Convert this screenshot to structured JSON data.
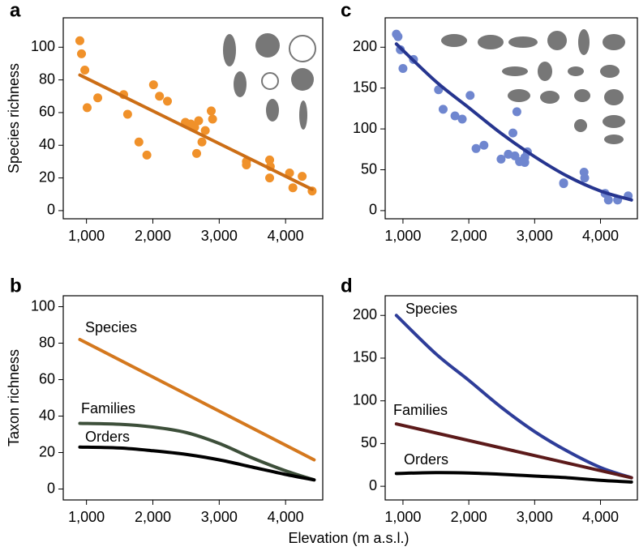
{
  "figure": {
    "xlabel": "Elevation (m a.s.l.)"
  },
  "chart_data": [
    {
      "type": "scatter",
      "label": "a",
      "ylabel": "Species richness",
      "xlim": [
        650,
        4560
      ],
      "ylim": [
        -5,
        118
      ],
      "xticks": [
        {
          "value": 1000,
          "label": "1,000"
        },
        {
          "value": 2000,
          "label": "2,000"
        },
        {
          "value": 3000,
          "label": "3,000"
        },
        {
          "value": 4000,
          "label": "4,000"
        }
      ],
      "yticks": [
        0,
        20,
        40,
        60,
        80,
        100
      ],
      "series": [
        {
          "color": "#f0912a",
          "x": [
            900,
            925,
            975,
            1010,
            1170,
            1560,
            1620,
            1790,
            1910,
            2010,
            2100,
            2220,
            2490,
            2570,
            2630,
            2690,
            2660,
            2740,
            2790,
            2880,
            2900,
            3410,
            3410,
            3760,
            3760,
            3770,
            4060,
            4110,
            4250,
            4400
          ],
          "values": [
            104,
            96,
            86,
            63,
            69,
            71,
            59,
            42,
            34,
            77,
            70,
            67,
            54,
            53,
            51,
            55,
            35,
            42,
            49,
            61,
            56,
            30,
            28,
            31,
            20,
            27,
            23,
            14,
            21,
            12
          ]
        }
      ],
      "trend": {
        "color": "#cc6e16",
        "x": [
          900,
          4400
        ],
        "values": [
          83,
          13
        ]
      }
    },
    {
      "type": "line",
      "label": "b",
      "ylabel": "Taxon richness",
      "xlim": [
        650,
        4560
      ],
      "ylim": [
        -6,
        106
      ],
      "xticks": [
        {
          "value": 1000,
          "label": "1,000"
        },
        {
          "value": 2000,
          "label": "2,000"
        },
        {
          "value": 3000,
          "label": "3,000"
        },
        {
          "value": 4000,
          "label": "4,000"
        }
      ],
      "yticks": [
        0,
        20,
        40,
        60,
        80,
        100
      ],
      "series": [
        {
          "name": "Species",
          "color": "#d4781e",
          "x": [
            900,
            4430
          ],
          "values": [
            82,
            16
          ]
        },
        {
          "name": "Families",
          "color": "#3d4f3a",
          "x": [
            900,
            1500,
            2000,
            2500,
            3000,
            3500,
            4000,
            4430
          ],
          "values": [
            36,
            35.5,
            34,
            31,
            25,
            17,
            10,
            5
          ]
        },
        {
          "name": "Orders",
          "color": "#000000",
          "x": [
            900,
            1500,
            2000,
            2500,
            3000,
            3500,
            4000,
            4430
          ],
          "values": [
            23,
            22.5,
            21,
            19,
            16,
            12,
            8,
            5
          ]
        }
      ]
    },
    {
      "type": "scatter",
      "label": "c",
      "xlim": [
        730,
        4560
      ],
      "ylim": [
        -10,
        236
      ],
      "xticks": [
        {
          "value": 1000,
          "label": "1,000"
        },
        {
          "value": 2000,
          "label": "2,000"
        },
        {
          "value": 3000,
          "label": "3,000"
        },
        {
          "value": 4000,
          "label": "4,000"
        }
      ],
      "yticks": [
        0,
        50,
        100,
        150,
        200
      ],
      "series": [
        {
          "color": "#6f86cf",
          "x": [
            900,
            925,
            960,
            1000,
            1160,
            1540,
            1610,
            1790,
            1900,
            2020,
            2110,
            2230,
            2490,
            2600,
            2700,
            2670,
            2730,
            2770,
            2850,
            2890,
            2850,
            3440,
            3440,
            3750,
            3760,
            4070,
            4120,
            4260,
            4420
          ],
          "values": [
            216,
            213,
            197,
            174,
            185,
            148,
            124,
            116,
            112,
            141,
            76,
            80,
            63,
            69,
            67,
            95,
            121,
            60,
            65,
            72,
            59,
            33,
            34,
            47,
            40,
            21,
            13,
            13,
            18
          ]
        }
      ],
      "trend": {
        "color": "#26358f",
        "x": [
          900,
          1500,
          2000,
          2500,
          3000,
          3500,
          4000,
          4470
        ],
        "values": [
          204,
          158,
          126,
          94,
          66,
          42,
          24,
          13
        ]
      }
    },
    {
      "type": "line",
      "label": "d",
      "xlim": [
        730,
        4560
      ],
      "ylim": [
        -16,
        223
      ],
      "xticks": [
        {
          "value": 1000,
          "label": "1,000"
        },
        {
          "value": 2000,
          "label": "2,000"
        },
        {
          "value": 3000,
          "label": "3,000"
        },
        {
          "value": 4000,
          "label": "4,000"
        }
      ],
      "yticks": [
        0,
        50,
        100,
        150,
        200
      ],
      "series": [
        {
          "name": "Species",
          "color": "#2e3d99",
          "x": [
            900,
            1500,
            2000,
            2500,
            3000,
            3500,
            4000,
            4470
          ],
          "values": [
            200,
            155,
            124,
            92,
            64,
            41,
            22,
            10
          ]
        },
        {
          "name": "Families",
          "color": "#5c1a1a",
          "x": [
            900,
            4470
          ],
          "values": [
            73,
            10
          ]
        },
        {
          "name": "Orders",
          "color": "#000000",
          "x": [
            900,
            1500,
            2000,
            2500,
            3000,
            3500,
            4000,
            4470
          ],
          "values": [
            15,
            16,
            15.5,
            14,
            12,
            10,
            7,
            5
          ]
        }
      ]
    }
  ]
}
